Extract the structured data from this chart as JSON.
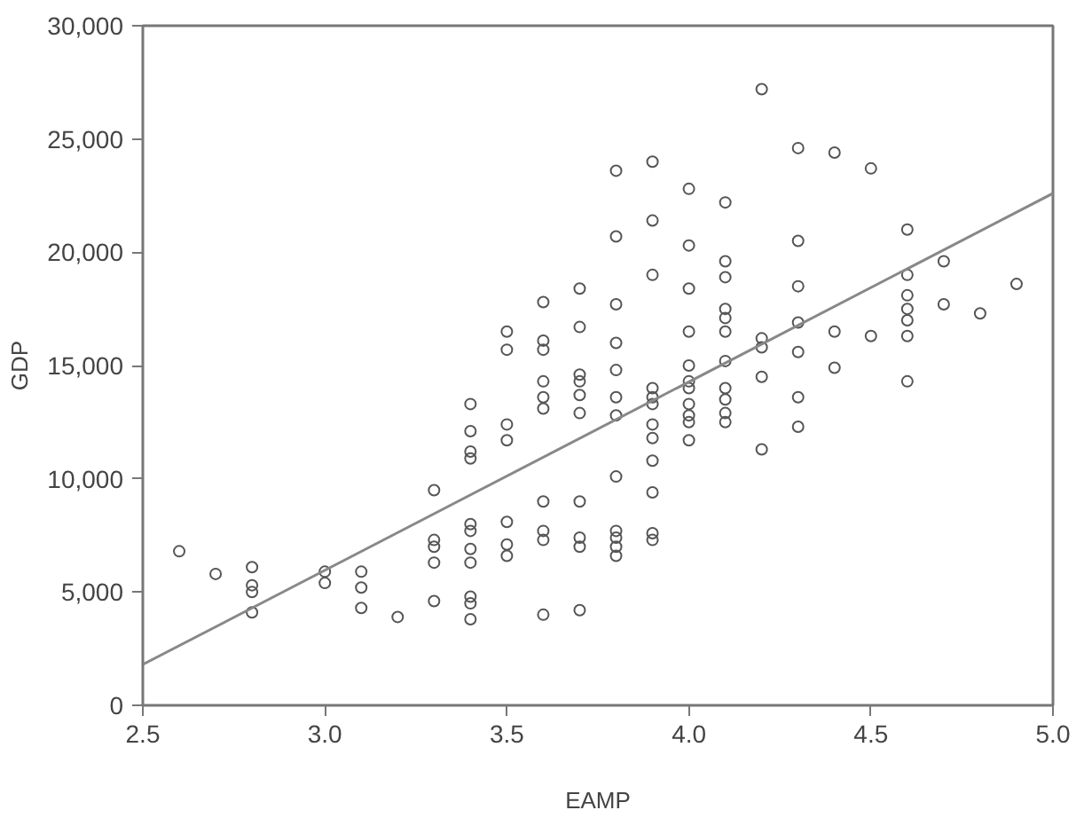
{
  "chart_data": {
    "type": "scatter",
    "xlabel": "EAMP",
    "ylabel": "GDP",
    "xlim": [
      2.5,
      5.0
    ],
    "ylim": [
      0,
      30000
    ],
    "xticks": [
      2.5,
      {
        "value": 3.0,
        "label": "3.0"
      },
      3.5,
      {
        "value": 4.0,
        "label": "4.0"
      },
      4.5,
      {
        "value": 5.0,
        "label": "5.0"
      }
    ],
    "yticks": [
      0,
      {
        "value": 5000,
        "label": "5,000"
      },
      {
        "value": 10000,
        "label": "10,000"
      },
      {
        "value": 15000,
        "label": "15,000"
      },
      {
        "value": 20000,
        "label": "20,000"
      },
      {
        "value": 25000,
        "label": "25,000"
      },
      {
        "value": 30000,
        "label": "30,000"
      }
    ],
    "grid": false,
    "marker": "circle",
    "series": [
      {
        "color": "#555555",
        "x": [
          2.6,
          2.7,
          2.8,
          2.8,
          2.8,
          2.8,
          3.0,
          3.0,
          3.1,
          3.1,
          3.1,
          3.2,
          3.3,
          3.3,
          3.3,
          3.3,
          3.3,
          3.4,
          3.4,
          3.4,
          3.4,
          3.4,
          3.4,
          3.4,
          3.4,
          3.4,
          3.4,
          3.4,
          3.5,
          3.5,
          3.5,
          3.5,
          3.5,
          3.5,
          3.5,
          3.6,
          3.6,
          3.6,
          3.6,
          3.6,
          3.6,
          3.6,
          3.6,
          3.6,
          3.6,
          3.7,
          3.7,
          3.7,
          3.7,
          3.7,
          3.7,
          3.7,
          3.7,
          3.7,
          3.7,
          3.8,
          3.8,
          3.8,
          3.8,
          3.8,
          3.8,
          3.8,
          3.8,
          3.8,
          3.8,
          3.8,
          3.8,
          3.9,
          3.9,
          3.9,
          3.9,
          3.9,
          3.9,
          3.9,
          3.9,
          3.9,
          3.9,
          3.9,
          3.9,
          4.0,
          4.0,
          4.0,
          4.0,
          4.0,
          4.0,
          4.0,
          4.0,
          4.0,
          4.0,
          4.0,
          4.1,
          4.1,
          4.1,
          4.1,
          4.1,
          4.1,
          4.1,
          4.1,
          4.1,
          4.1,
          4.1,
          4.2,
          4.2,
          4.2,
          4.2,
          4.2,
          4.3,
          4.3,
          4.3,
          4.3,
          4.3,
          4.3,
          4.3,
          4.4,
          4.4,
          4.4,
          4.5,
          4.5,
          4.6,
          4.6,
          4.6,
          4.6,
          4.6,
          4.6,
          4.6,
          4.7,
          4.7,
          4.8,
          4.9
        ],
        "values": [
          6800,
          5800,
          6100,
          5300,
          5000,
          4100,
          5900,
          5400,
          5900,
          5200,
          4300,
          3900,
          9500,
          7300,
          7000,
          6300,
          4600,
          13300,
          12100,
          11200,
          10900,
          8000,
          7700,
          6900,
          6300,
          4800,
          4500,
          3800,
          16500,
          15700,
          12400,
          11700,
          8100,
          7100,
          6600,
          17800,
          16100,
          15700,
          14300,
          13600,
          13100,
          9000,
          7700,
          7300,
          4000,
          18400,
          16700,
          14600,
          14300,
          13700,
          12900,
          9000,
          7400,
          7000,
          4200,
          23600,
          20700,
          17700,
          16000,
          14800,
          13600,
          12800,
          10100,
          7700,
          7400,
          7000,
          6600,
          24000,
          21400,
          19000,
          14000,
          13600,
          13300,
          12400,
          11800,
          10800,
          9400,
          7600,
          7300,
          22800,
          20300,
          18400,
          16500,
          15000,
          14300,
          14000,
          13300,
          12800,
          12500,
          11700,
          22200,
          19600,
          18900,
          17500,
          17100,
          16500,
          15200,
          14000,
          13500,
          12900,
          12500,
          27200,
          16200,
          15800,
          14500,
          11300,
          24600,
          20500,
          18500,
          16900,
          15600,
          13600,
          12300,
          24400,
          16500,
          14900,
          23700,
          16300,
          21000,
          19000,
          18100,
          17500,
          17000,
          16300,
          14300,
          19600,
          17700,
          17300,
          18600
        ]
      },
      {
        "type": "line",
        "color": "#888888",
        "marker": "none",
        "line_style": "solid",
        "x": [
          2.5,
          5.0
        ],
        "values": [
          1800,
          22600
        ]
      }
    ]
  }
}
